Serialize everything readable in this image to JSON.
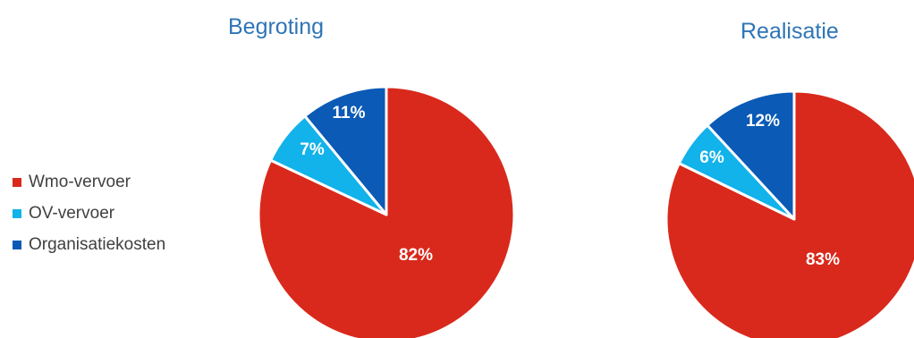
{
  "legend": [
    {
      "label": "Wmo-vervoer",
      "color": "#d9291c"
    },
    {
      "label": "OV-vervoer",
      "color": "#12b2ea"
    },
    {
      "label": "Organisatiekosten",
      "color": "#0a5ab6"
    }
  ],
  "chart_data": [
    {
      "type": "pie",
      "title": "Begroting",
      "categories": [
        "Wmo-vervoer",
        "OV-vervoer",
        "Organisatiekosten"
      ],
      "values": [
        82,
        7,
        11
      ],
      "labels": [
        "82%",
        "7%",
        "11%"
      ],
      "colors": [
        "#d9291c",
        "#12b2ea",
        "#0a5ab6"
      ],
      "start": "12 o'clock, clockwise",
      "legend": "left"
    },
    {
      "type": "pie",
      "title": "Realisatie",
      "categories": [
        "Wmo-vervoer",
        "OV-vervoer",
        "Organisatiekosten"
      ],
      "values": [
        83,
        6,
        12
      ],
      "labels": [
        "83%",
        "6%",
        "12%"
      ],
      "colors": [
        "#d9291c",
        "#12b2ea",
        "#0a5ab6"
      ],
      "start": "12 o'clock, clockwise",
      "legend": "left"
    }
  ]
}
